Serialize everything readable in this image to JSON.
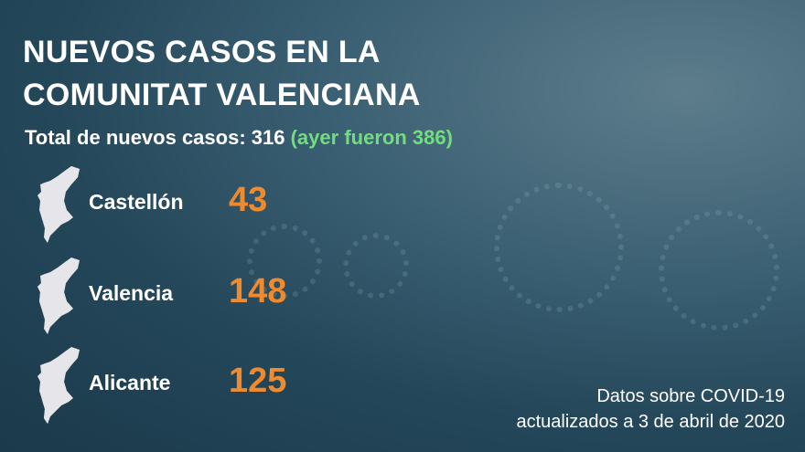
{
  "title_lines": [
    "NUEVOS CASOS EN LA",
    "COMUNITAT VALENCIANA"
  ],
  "total": {
    "label": "Total de nuevos casos: 316",
    "yesterday": "(ayer fueron 386)"
  },
  "provinces": [
    {
      "name": "Castellón",
      "cases": "43",
      "highlight": "north"
    },
    {
      "name": "Valencia",
      "cases": "148",
      "highlight": "center"
    },
    {
      "name": "Alicante",
      "cases": "125",
      "highlight": "south"
    }
  ],
  "footer": [
    "Datos sobre COVID-19",
    "actualizados a 3 de abril de 2020"
  ],
  "colors": {
    "accent": "#f08a2c",
    "green": "#72dd7e",
    "map_base": "#e6e6ea",
    "background": "#24475a"
  }
}
